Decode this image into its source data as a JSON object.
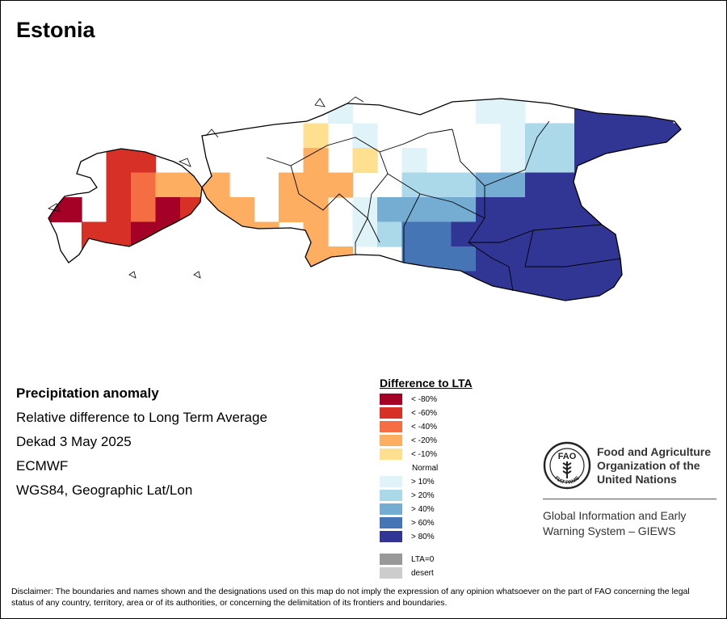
{
  "map": {
    "title": "Estonia"
  },
  "info": {
    "heading": "Precipitation anomaly",
    "line1": "Relative difference to Long Term Average",
    "line2": "Dekad 3 May 2025",
    "line3": "ECMWF",
    "line4": "WGS84, Geographic Lat/Lon"
  },
  "legend": {
    "title": "Difference to LTA",
    "classes": [
      {
        "label": "< -80%",
        "color": "#a50026"
      },
      {
        "label": "< -60%",
        "color": "#d73027"
      },
      {
        "label": "< -40%",
        "color": "#f46d43"
      },
      {
        "label": "< -20%",
        "color": "#fdae61"
      },
      {
        "label": "< -10%",
        "color": "#fee090"
      },
      {
        "label": "> 10%",
        "color": "#e0f3f8"
      },
      {
        "label": "> 20%",
        "color": "#abd9e9"
      },
      {
        "label": "> 40%",
        "color": "#74add1"
      },
      {
        "label": "> 60%",
        "color": "#4575b4"
      },
      {
        "label": "> 80%",
        "color": "#313695"
      }
    ],
    "normal_label": "Normal",
    "extra": [
      {
        "label": "LTA=0",
        "color": "#999999"
      },
      {
        "label": "desert",
        "color": "#cccccc"
      }
    ]
  },
  "fao": {
    "name_line1": "Food and Agriculture",
    "name_line2": "Organization of the",
    "name_line3": "United Nations",
    "logo_letters": "FAO",
    "logo_motto": "FIAT PANIS",
    "giews_line1": "Global Information and Early",
    "giews_line2": "Warning System – GIEWS"
  },
  "disclaimer": "Disclaimer: The boundaries and names shown and the designations used on this map do not imply the expression of any opinion whatsoever on the part of FAO concerning the legal status of any country, territory, area or of its authorities, or concerning the delimitation of its frontiers and boundaries."
}
